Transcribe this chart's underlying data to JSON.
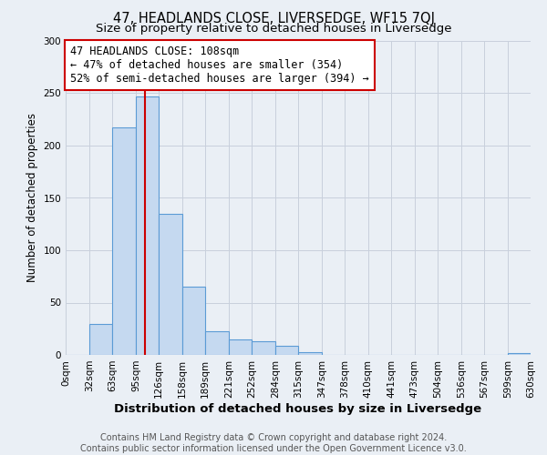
{
  "title": "47, HEADLANDS CLOSE, LIVERSEDGE, WF15 7QJ",
  "subtitle": "Size of property relative to detached houses in Liversedge",
  "xlabel": "Distribution of detached houses by size in Liversedge",
  "ylabel": "Number of detached properties",
  "bin_edges": [
    0,
    32,
    63,
    95,
    126,
    158,
    189,
    221,
    252,
    284,
    315,
    347,
    378,
    410,
    441,
    473,
    504,
    536,
    567,
    599,
    630
  ],
  "bar_heights": [
    0,
    30,
    217,
    247,
    135,
    65,
    23,
    15,
    13,
    9,
    3,
    0,
    0,
    0,
    0,
    0,
    0,
    0,
    0,
    2
  ],
  "bar_color": "#c5d9f0",
  "bar_edge_color": "#5b9bd5",
  "grid_color": "#c8d0dc",
  "background_color": "#eaeff5",
  "red_line_x": 108,
  "annotation_lines": [
    "47 HEADLANDS CLOSE: 108sqm",
    "← 47% of detached houses are smaller (354)",
    "52% of semi-detached houses are larger (394) →"
  ],
  "annotation_box_color": "#ffffff",
  "annotation_box_edge": "#cc0000",
  "red_line_color": "#cc0000",
  "xlim": [
    0,
    630
  ],
  "ylim": [
    0,
    300
  ],
  "yticks": [
    0,
    50,
    100,
    150,
    200,
    250,
    300
  ],
  "xtick_labels": [
    "0sqm",
    "32sqm",
    "63sqm",
    "95sqm",
    "126sqm",
    "158sqm",
    "189sqm",
    "221sqm",
    "252sqm",
    "284sqm",
    "315sqm",
    "347sqm",
    "378sqm",
    "410sqm",
    "441sqm",
    "473sqm",
    "504sqm",
    "536sqm",
    "567sqm",
    "599sqm",
    "630sqm"
  ],
  "footer_lines": [
    "Contains HM Land Registry data © Crown copyright and database right 2024.",
    "Contains public sector information licensed under the Open Government Licence v3.0."
  ],
  "title_fontsize": 10.5,
  "subtitle_fontsize": 9.5,
  "xlabel_fontsize": 9.5,
  "ylabel_fontsize": 8.5,
  "tick_fontsize": 7.5,
  "annotation_fontsize": 8.5,
  "footer_fontsize": 7.0
}
